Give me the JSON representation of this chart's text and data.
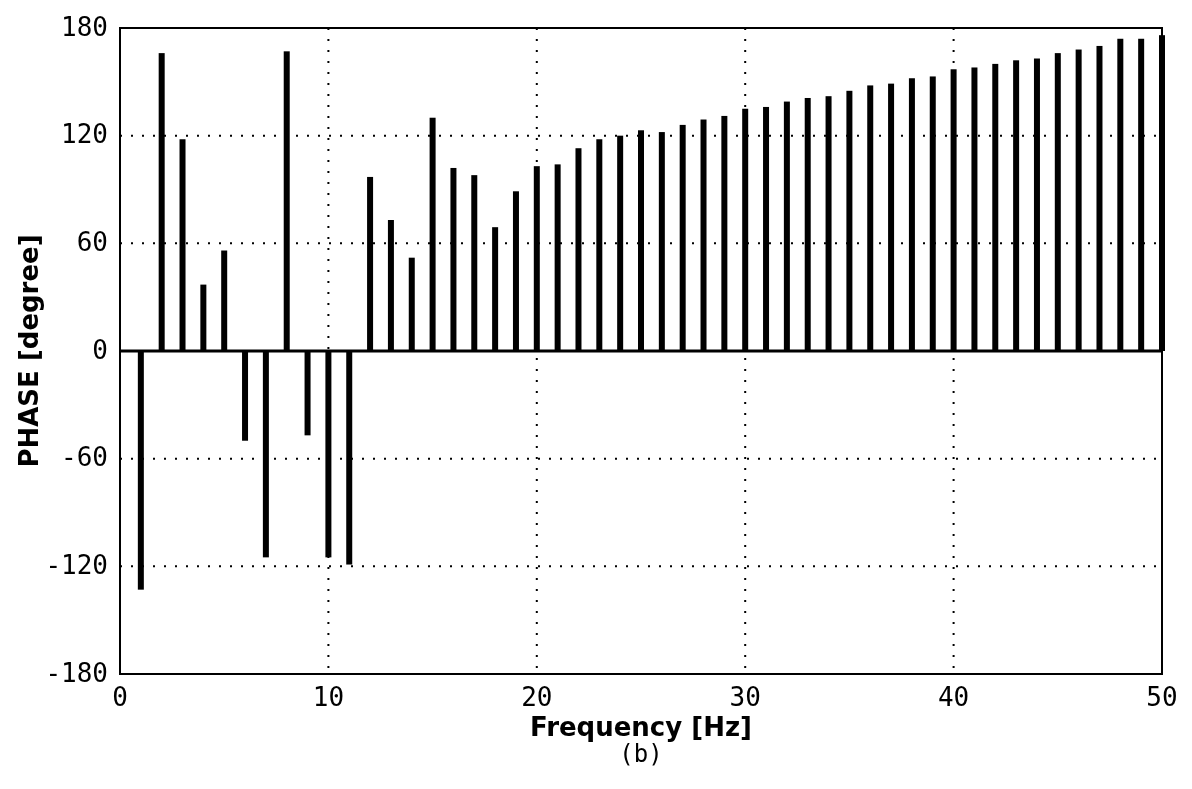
{
  "chart_data": {
    "type": "bar",
    "xlabel": "Frequency [Hz]",
    "ylabel": "PHASE [degree]",
    "annotations": [
      "(b)"
    ],
    "x": [
      1,
      2,
      3,
      4,
      5,
      6,
      7,
      8,
      9,
      10,
      11,
      12,
      13,
      14,
      15,
      16,
      17,
      18,
      19,
      20,
      21,
      22,
      23,
      24,
      25,
      26,
      27,
      28,
      29,
      30,
      31,
      32,
      33,
      34,
      35,
      36,
      37,
      38,
      39,
      40,
      41,
      42,
      43,
      44,
      45,
      46,
      47,
      48,
      49,
      50
    ],
    "values": [
      -133,
      166,
      118,
      37,
      56,
      -50,
      -115,
      167,
      -47,
      -115,
      -119,
      97,
      73,
      52,
      130,
      102,
      98,
      69,
      89,
      103,
      104,
      113,
      118,
      120,
      123,
      122,
      126,
      129,
      131,
      135,
      136,
      139,
      141,
      142,
      145,
      148,
      149,
      152,
      153,
      157,
      158,
      160,
      162,
      163,
      166,
      168,
      170,
      174,
      174,
      176
    ],
    "color": "#000000",
    "xlim": [
      0,
      50
    ],
    "xticks": [
      0,
      10,
      20,
      30,
      40,
      50
    ],
    "ylim": [
      -180,
      180
    ],
    "yticks": [
      -180,
      -120,
      -60,
      0,
      60,
      120,
      180
    ],
    "grid": true
  }
}
